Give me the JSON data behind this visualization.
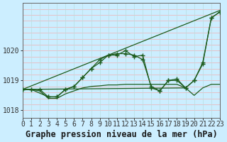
{
  "title": "Graphe pression niveau de la mer (hPa)",
  "series": [
    {
      "x": [
        0,
        1,
        2,
        3,
        4,
        5,
        6,
        7,
        8,
        9,
        10,
        11,
        12,
        13,
        14,
        15,
        16,
        17,
        18,
        19,
        20,
        21,
        22,
        23
      ],
      "y": [
        1018.7,
        1018.7,
        1018.7,
        1018.45,
        1018.45,
        1018.7,
        1018.8,
        1019.1,
        1019.4,
        1019.7,
        1019.85,
        1019.85,
        1020.0,
        1019.8,
        1019.85,
        1018.75,
        1018.65,
        1019.0,
        1019.0,
        1018.75,
        1019.0,
        1019.6,
        1021.1,
        1021.3
      ],
      "has_markers": true
    },
    {
      "x": [
        0,
        1,
        2,
        3,
        4,
        5,
        6,
        7,
        8,
        9,
        10,
        11,
        12,
        13,
        14,
        15,
        16,
        17,
        18,
        19,
        20,
        21,
        22,
        23
      ],
      "y": [
        1018.7,
        1018.7,
        1018.65,
        1018.4,
        1018.4,
        1018.55,
        1018.65,
        1018.75,
        1018.8,
        1018.82,
        1018.85,
        1018.85,
        1018.87,
        1018.87,
        1018.87,
        1018.87,
        1018.87,
        1018.87,
        1018.87,
        1018.75,
        1018.5,
        1018.75,
        1018.87,
        1018.87
      ],
      "has_markers": false
    },
    {
      "x": [
        0,
        1,
        3,
        4,
        5,
        6,
        7,
        8,
        9,
        10,
        11,
        12,
        13,
        14,
        15,
        16,
        17,
        18,
        19,
        20,
        21,
        22,
        23
      ],
      "y": [
        1018.7,
        1018.7,
        1018.45,
        1018.45,
        1018.7,
        1018.8,
        1019.1,
        1019.4,
        1019.6,
        1019.85,
        1019.9,
        1019.9,
        1019.85,
        1019.7,
        1018.8,
        1018.65,
        1019.0,
        1019.05,
        1018.75,
        1019.0,
        1019.55,
        1021.1,
        1021.3
      ],
      "has_markers": true
    },
    {
      "x": [
        0,
        19
      ],
      "y": [
        1018.7,
        1018.75
      ],
      "has_markers": false
    },
    {
      "x": [
        0,
        23
      ],
      "y": [
        1018.7,
        1021.35
      ],
      "has_markers": false
    }
  ],
  "line_color": "#1e5c1e",
  "bg_color": "#cceeff",
  "grid_color_h": "#f0b0b0",
  "grid_color_v": "#b8dde0",
  "ylim": [
    1017.75,
    1021.6
  ],
  "yticks": [
    1018,
    1019,
    1020
  ],
  "xlim": [
    0,
    23
  ],
  "title_fontsize": 8.5,
  "tick_fontsize": 7
}
